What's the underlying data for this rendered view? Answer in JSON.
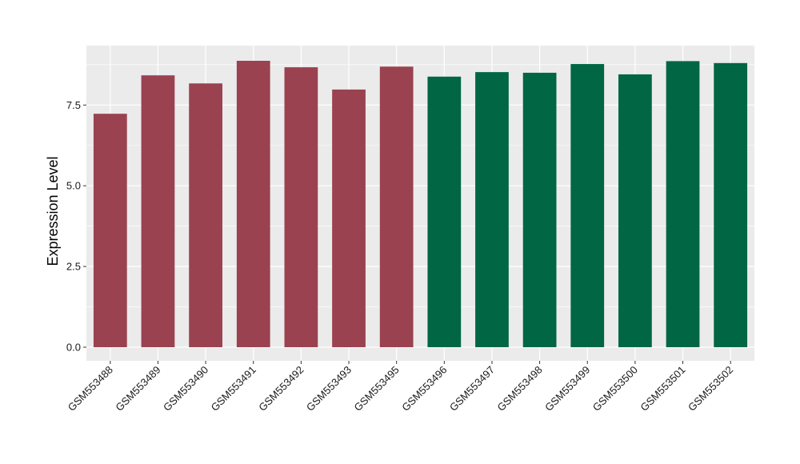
{
  "chart_data": {
    "type": "bar",
    "title": "",
    "xlabel": "",
    "ylabel": "Expression Level",
    "ylim": [
      0,
      9.3
    ],
    "yticks": [
      0.0,
      2.5,
      5.0,
      7.5
    ],
    "ytick_labels": [
      "0.0",
      "2.5",
      "5.0",
      "7.5"
    ],
    "grid": true,
    "legend": "none",
    "panel_color": "#EBEBEB",
    "grid_color": "#FFFFFF",
    "categories": [
      "GSM553488",
      "GSM553489",
      "GSM553490",
      "GSM553491",
      "GSM553492",
      "GSM553493",
      "GSM553495",
      "GSM553496",
      "GSM553497",
      "GSM553498",
      "GSM553499",
      "GSM553500",
      "GSM553501",
      "GSM553502"
    ],
    "values": [
      7.23,
      8.42,
      8.17,
      8.87,
      8.67,
      7.98,
      8.69,
      8.38,
      8.52,
      8.5,
      8.77,
      8.45,
      8.86,
      8.8
    ],
    "groups": [
      0,
      0,
      0,
      0,
      0,
      0,
      0,
      1,
      1,
      1,
      1,
      1,
      1,
      1
    ],
    "group_colors": [
      "#9A4250",
      "#006644"
    ]
  }
}
